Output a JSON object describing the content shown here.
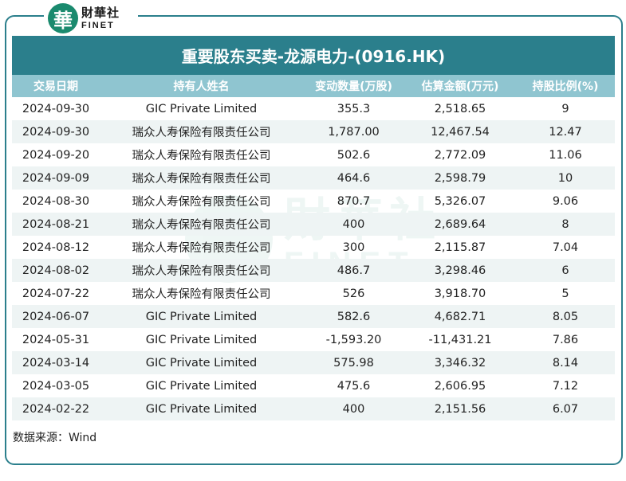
{
  "logo": {
    "mark": "華",
    "cn": "財華社",
    "en": "FINET"
  },
  "watermark": {
    "cn": "財華社",
    "en": "FINET"
  },
  "title": "重要股东买卖-龙源电力-(0916.HK)",
  "columns": [
    "交易日期",
    "持有人姓名",
    "变动数量(万股)",
    "估算金额(万元)",
    "持股比例(%)"
  ],
  "rows": [
    [
      "2024-09-30",
      "GIC Private Limited",
      "355.3",
      "2,518.65",
      "9"
    ],
    [
      "2024-09-30",
      "瑞众人寿保险有限责任公司",
      "1,787.00",
      "12,467.54",
      "12.47"
    ],
    [
      "2024-09-20",
      "瑞众人寿保险有限责任公司",
      "502.6",
      "2,772.09",
      "11.06"
    ],
    [
      "2024-09-09",
      "瑞众人寿保险有限责任公司",
      "464.6",
      "2,598.79",
      "10"
    ],
    [
      "2024-08-30",
      "瑞众人寿保险有限责任公司",
      "870.7",
      "5,326.07",
      "9.06"
    ],
    [
      "2024-08-21",
      "瑞众人寿保险有限责任公司",
      "400",
      "2,689.64",
      "8"
    ],
    [
      "2024-08-12",
      "瑞众人寿保险有限责任公司",
      "300",
      "2,115.87",
      "7.04"
    ],
    [
      "2024-08-02",
      "瑞众人寿保险有限责任公司",
      "486.7",
      "3,298.46",
      "6"
    ],
    [
      "2024-07-22",
      "瑞众人寿保险有限责任公司",
      "526",
      "3,918.70",
      "5"
    ],
    [
      "2024-06-07",
      "GIC Private Limited",
      "582.6",
      "4,682.71",
      "8.05"
    ],
    [
      "2024-05-31",
      "GIC Private Limited",
      "-1,593.20",
      "-11,431.21",
      "7.86"
    ],
    [
      "2024-03-14",
      "GIC Private Limited",
      "575.98",
      "3,346.32",
      "8.14"
    ],
    [
      "2024-03-05",
      "GIC Private Limited",
      "475.6",
      "2,606.95",
      "7.12"
    ],
    [
      "2024-02-22",
      "GIC Private Limited",
      "400",
      "2,151.56",
      "6.07"
    ]
  ],
  "source": "数据来源：Wind",
  "colors": {
    "brand": "#2b7f8c",
    "header": "#8fc5d0",
    "stripe": "#eef4f4",
    "logo": "#1a8a6e"
  }
}
